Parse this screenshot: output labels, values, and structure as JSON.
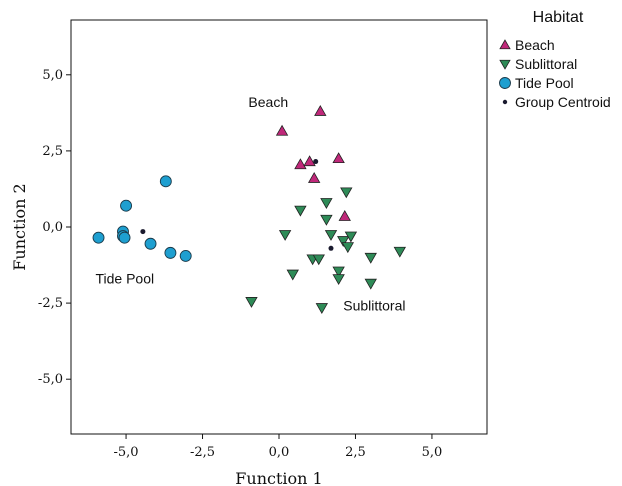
{
  "chart_data": {
    "type": "scatter",
    "xlabel": "Function 1",
    "ylabel": "Function 2",
    "xlim": [
      -6.8,
      6.8
    ],
    "ylim": [
      -6.8,
      6.8
    ],
    "x_ticks": [
      -5.0,
      -2.5,
      0.0,
      2.5,
      5.0
    ],
    "y_ticks": [
      -5.0,
      -2.5,
      0.0,
      2.5,
      5.0
    ],
    "x_tick_labels": [
      "-5,0",
      "-2,5",
      "0,0",
      "2,5",
      "5,0"
    ],
    "y_tick_labels": [
      "-5,0",
      "-2,5",
      "0,0",
      "2,5",
      "5,0"
    ],
    "grid": false,
    "legend": {
      "title": "Habitat",
      "placement": "top-right outside"
    },
    "series": [
      {
        "name": "Beach",
        "marker": "triangle-up",
        "color": "#c0287a",
        "points": [
          [
            0.1,
            3.15
          ],
          [
            1.35,
            3.8
          ],
          [
            0.7,
            2.05
          ],
          [
            1.0,
            2.15
          ],
          [
            1.15,
            1.6
          ],
          [
            1.95,
            2.25
          ],
          [
            2.15,
            0.35
          ]
        ]
      },
      {
        "name": "Sublittoral",
        "marker": "triangle-down",
        "color": "#2e8b57",
        "points": [
          [
            0.7,
            0.55
          ],
          [
            0.2,
            -0.25
          ],
          [
            1.55,
            0.8
          ],
          [
            2.2,
            1.15
          ],
          [
            1.55,
            0.25
          ],
          [
            1.7,
            -0.25
          ],
          [
            2.1,
            -0.45
          ],
          [
            2.35,
            -0.3
          ],
          [
            2.25,
            -0.65
          ],
          [
            3.0,
            -1.0
          ],
          [
            3.95,
            -0.8
          ],
          [
            1.1,
            -1.05
          ],
          [
            1.3,
            -1.05
          ],
          [
            1.95,
            -1.45
          ],
          [
            0.45,
            -1.55
          ],
          [
            1.95,
            -1.7
          ],
          [
            3.0,
            -1.85
          ],
          [
            -0.9,
            -2.45
          ],
          [
            1.4,
            -2.65
          ]
        ]
      },
      {
        "name": "Tide Pool",
        "marker": "circle",
        "color": "#1e9fd0",
        "points": [
          [
            -3.7,
            1.5
          ],
          [
            -5.0,
            0.7
          ],
          [
            -5.9,
            -0.35
          ],
          [
            -5.1,
            -0.15
          ],
          [
            -5.1,
            -0.3
          ],
          [
            -5.05,
            -0.35
          ],
          [
            -4.2,
            -0.55
          ],
          [
            -3.55,
            -0.85
          ],
          [
            -3.05,
            -0.95
          ]
        ]
      },
      {
        "name": "Group Centroid",
        "marker": "dot",
        "color": "#1a1a2e",
        "points": [
          [
            1.2,
            2.15
          ],
          [
            1.7,
            -0.7
          ],
          [
            -4.45,
            -0.15
          ]
        ]
      }
    ],
    "annotations": [
      {
        "text": "Beach",
        "x": -1.0,
        "y": 3.95
      },
      {
        "text": "Tide Pool",
        "x": -6.0,
        "y": -1.85
      },
      {
        "text": "Sublittoral",
        "x": 2.1,
        "y": -2.75
      }
    ]
  }
}
